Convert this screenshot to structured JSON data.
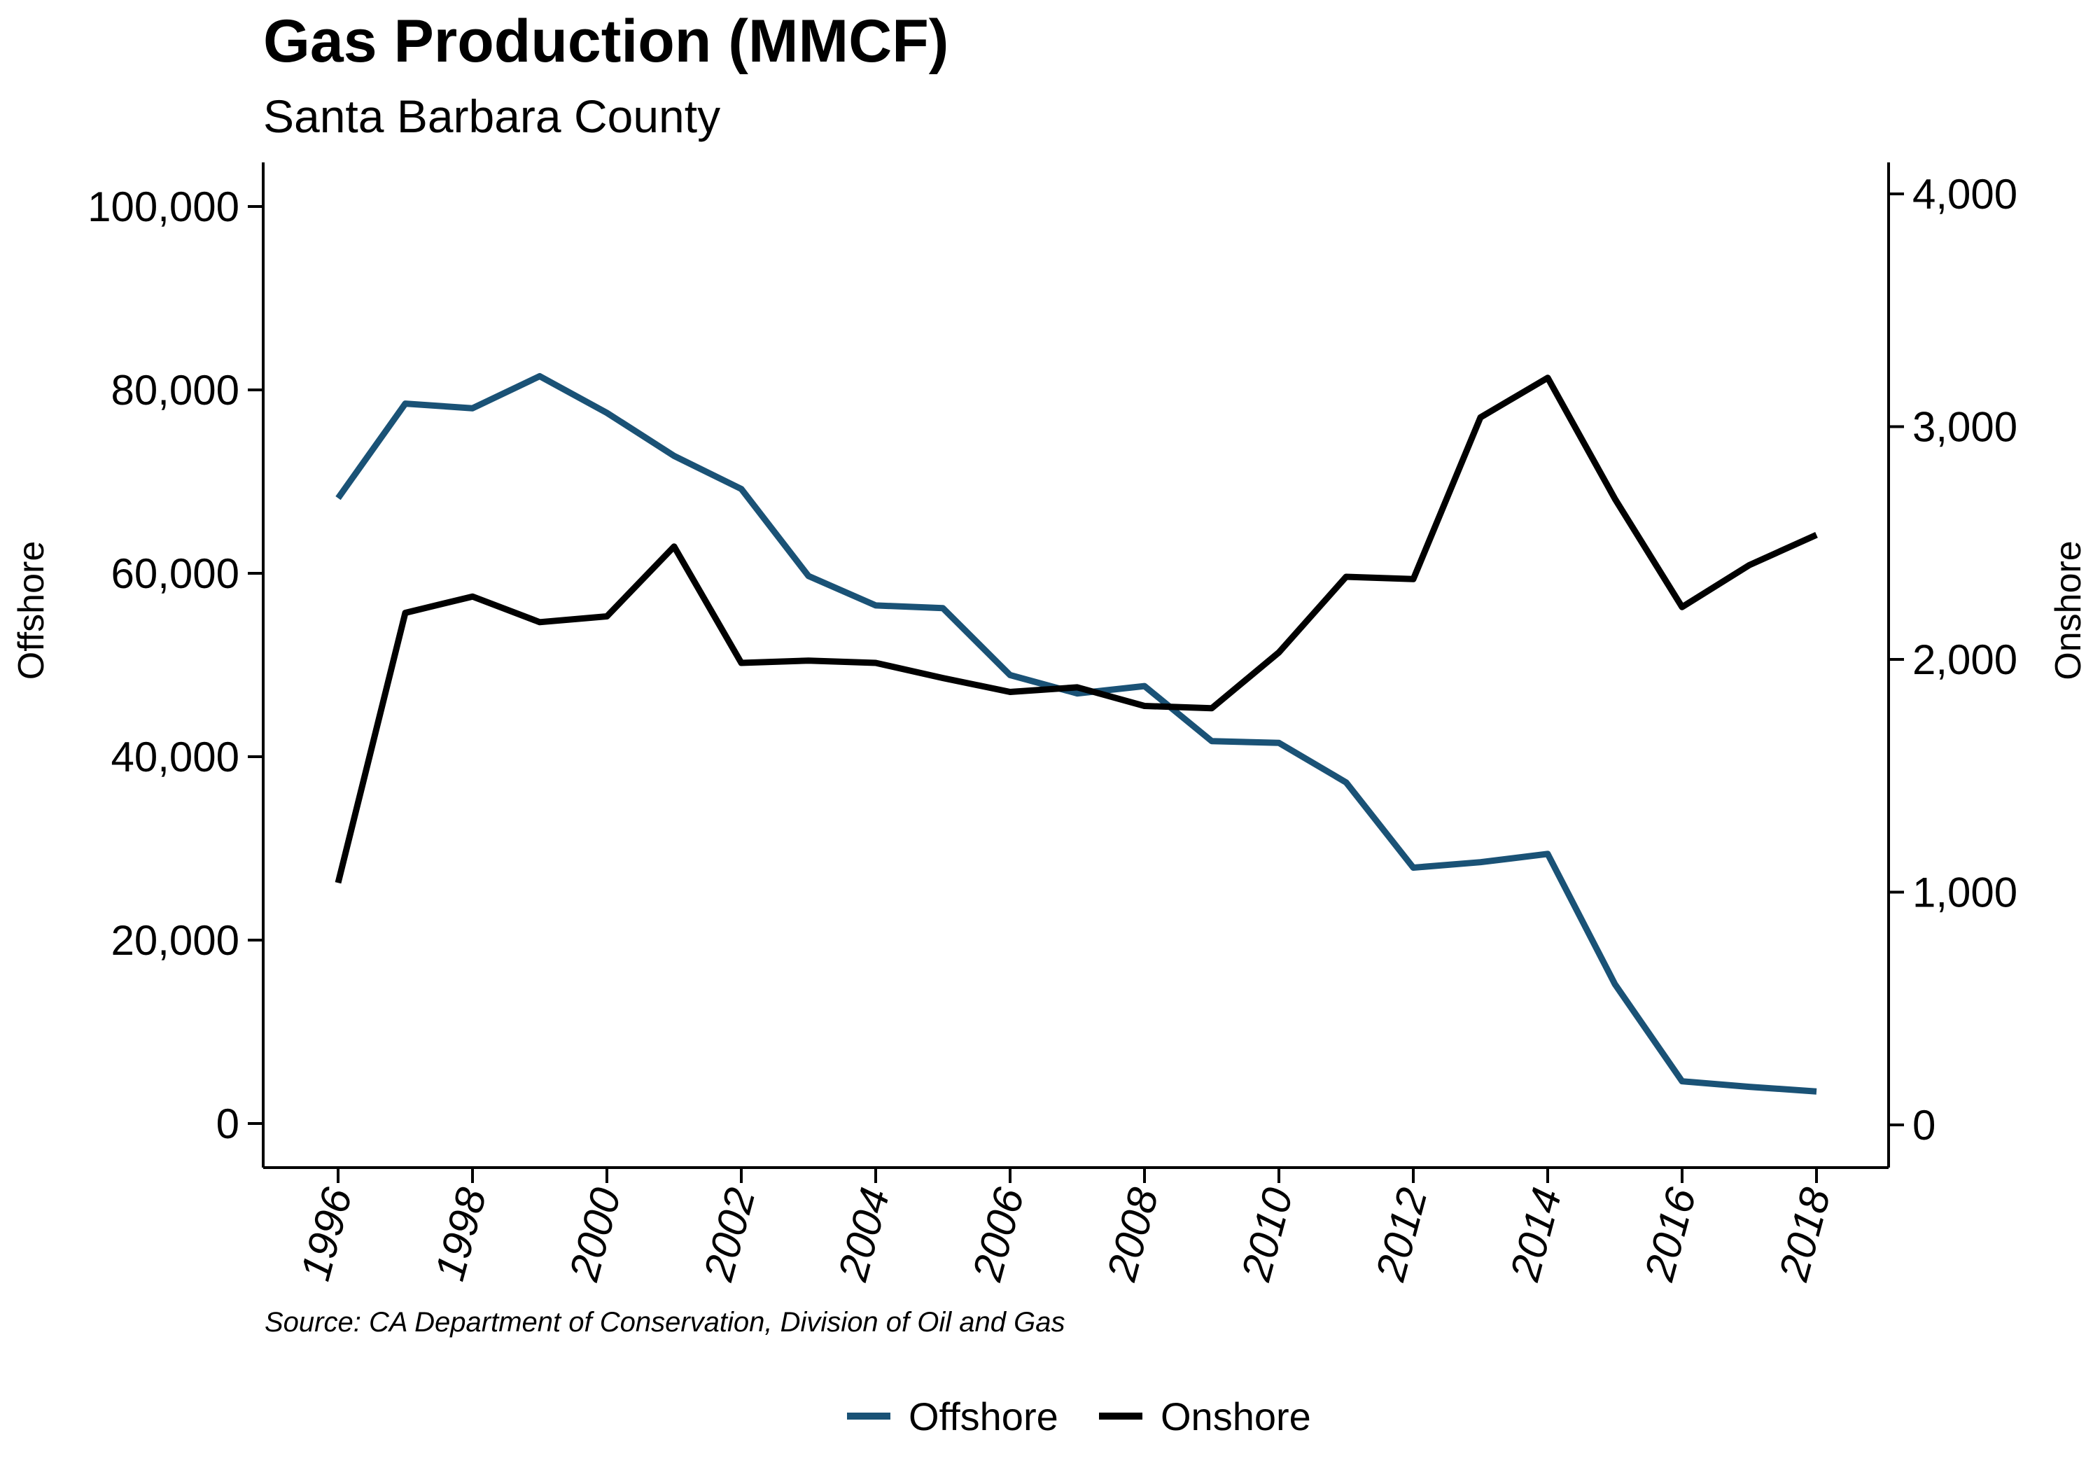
{
  "title": "Gas Production (MMCF)",
  "subtitle": "Santa Barbara County",
  "source": "Source: CA Department of Conservation, Division of Oil and Gas",
  "colors": {
    "offshore": "#1a5276",
    "onshore": "#000000"
  },
  "chart_data": {
    "type": "line",
    "x": [
      1996,
      1997,
      1998,
      1999,
      2000,
      2001,
      2002,
      2003,
      2004,
      2005,
      2006,
      2007,
      2008,
      2009,
      2010,
      2011,
      2012,
      2013,
      2014,
      2015,
      2016,
      2017,
      2018
    ],
    "x_tick_labels": [
      "1996",
      "1998",
      "2000",
      "2002",
      "2004",
      "2006",
      "2008",
      "2010",
      "2012",
      "2014",
      "2016",
      "2018"
    ],
    "series": [
      {
        "name": "Offshore",
        "axis": "left",
        "values": [
          68200,
          78500,
          78000,
          81500,
          77500,
          72800,
          69200,
          59700,
          56500,
          56200,
          48900,
          46900,
          47700,
          41700,
          41500,
          37200,
          27900,
          28500,
          29400,
          15200,
          4600,
          4000,
          3500
        ]
      },
      {
        "name": "Onshore",
        "axis": "right",
        "values": [
          1040,
          2200,
          2270,
          2160,
          2185,
          2485,
          1985,
          1995,
          1985,
          1920,
          1860,
          1880,
          1800,
          1790,
          2030,
          2355,
          2345,
          3040,
          3210,
          2690,
          2225,
          2405,
          2535
        ]
      }
    ],
    "y_left": {
      "label": "Offshore",
      "ylim": [
        0,
        100000
      ],
      "ticks": [
        "0",
        "20,000",
        "40,000",
        "60,000",
        "80,000",
        "100,000"
      ]
    },
    "y_right": {
      "label": "Onshore",
      "ylim": [
        0,
        4000
      ],
      "ticks": [
        "0",
        "1,000",
        "2,000",
        "3,000",
        "4,000"
      ]
    },
    "legend": {
      "placement": "bottom-center",
      "entries": [
        "Offshore",
        "Onshore"
      ]
    },
    "grid": false
  }
}
